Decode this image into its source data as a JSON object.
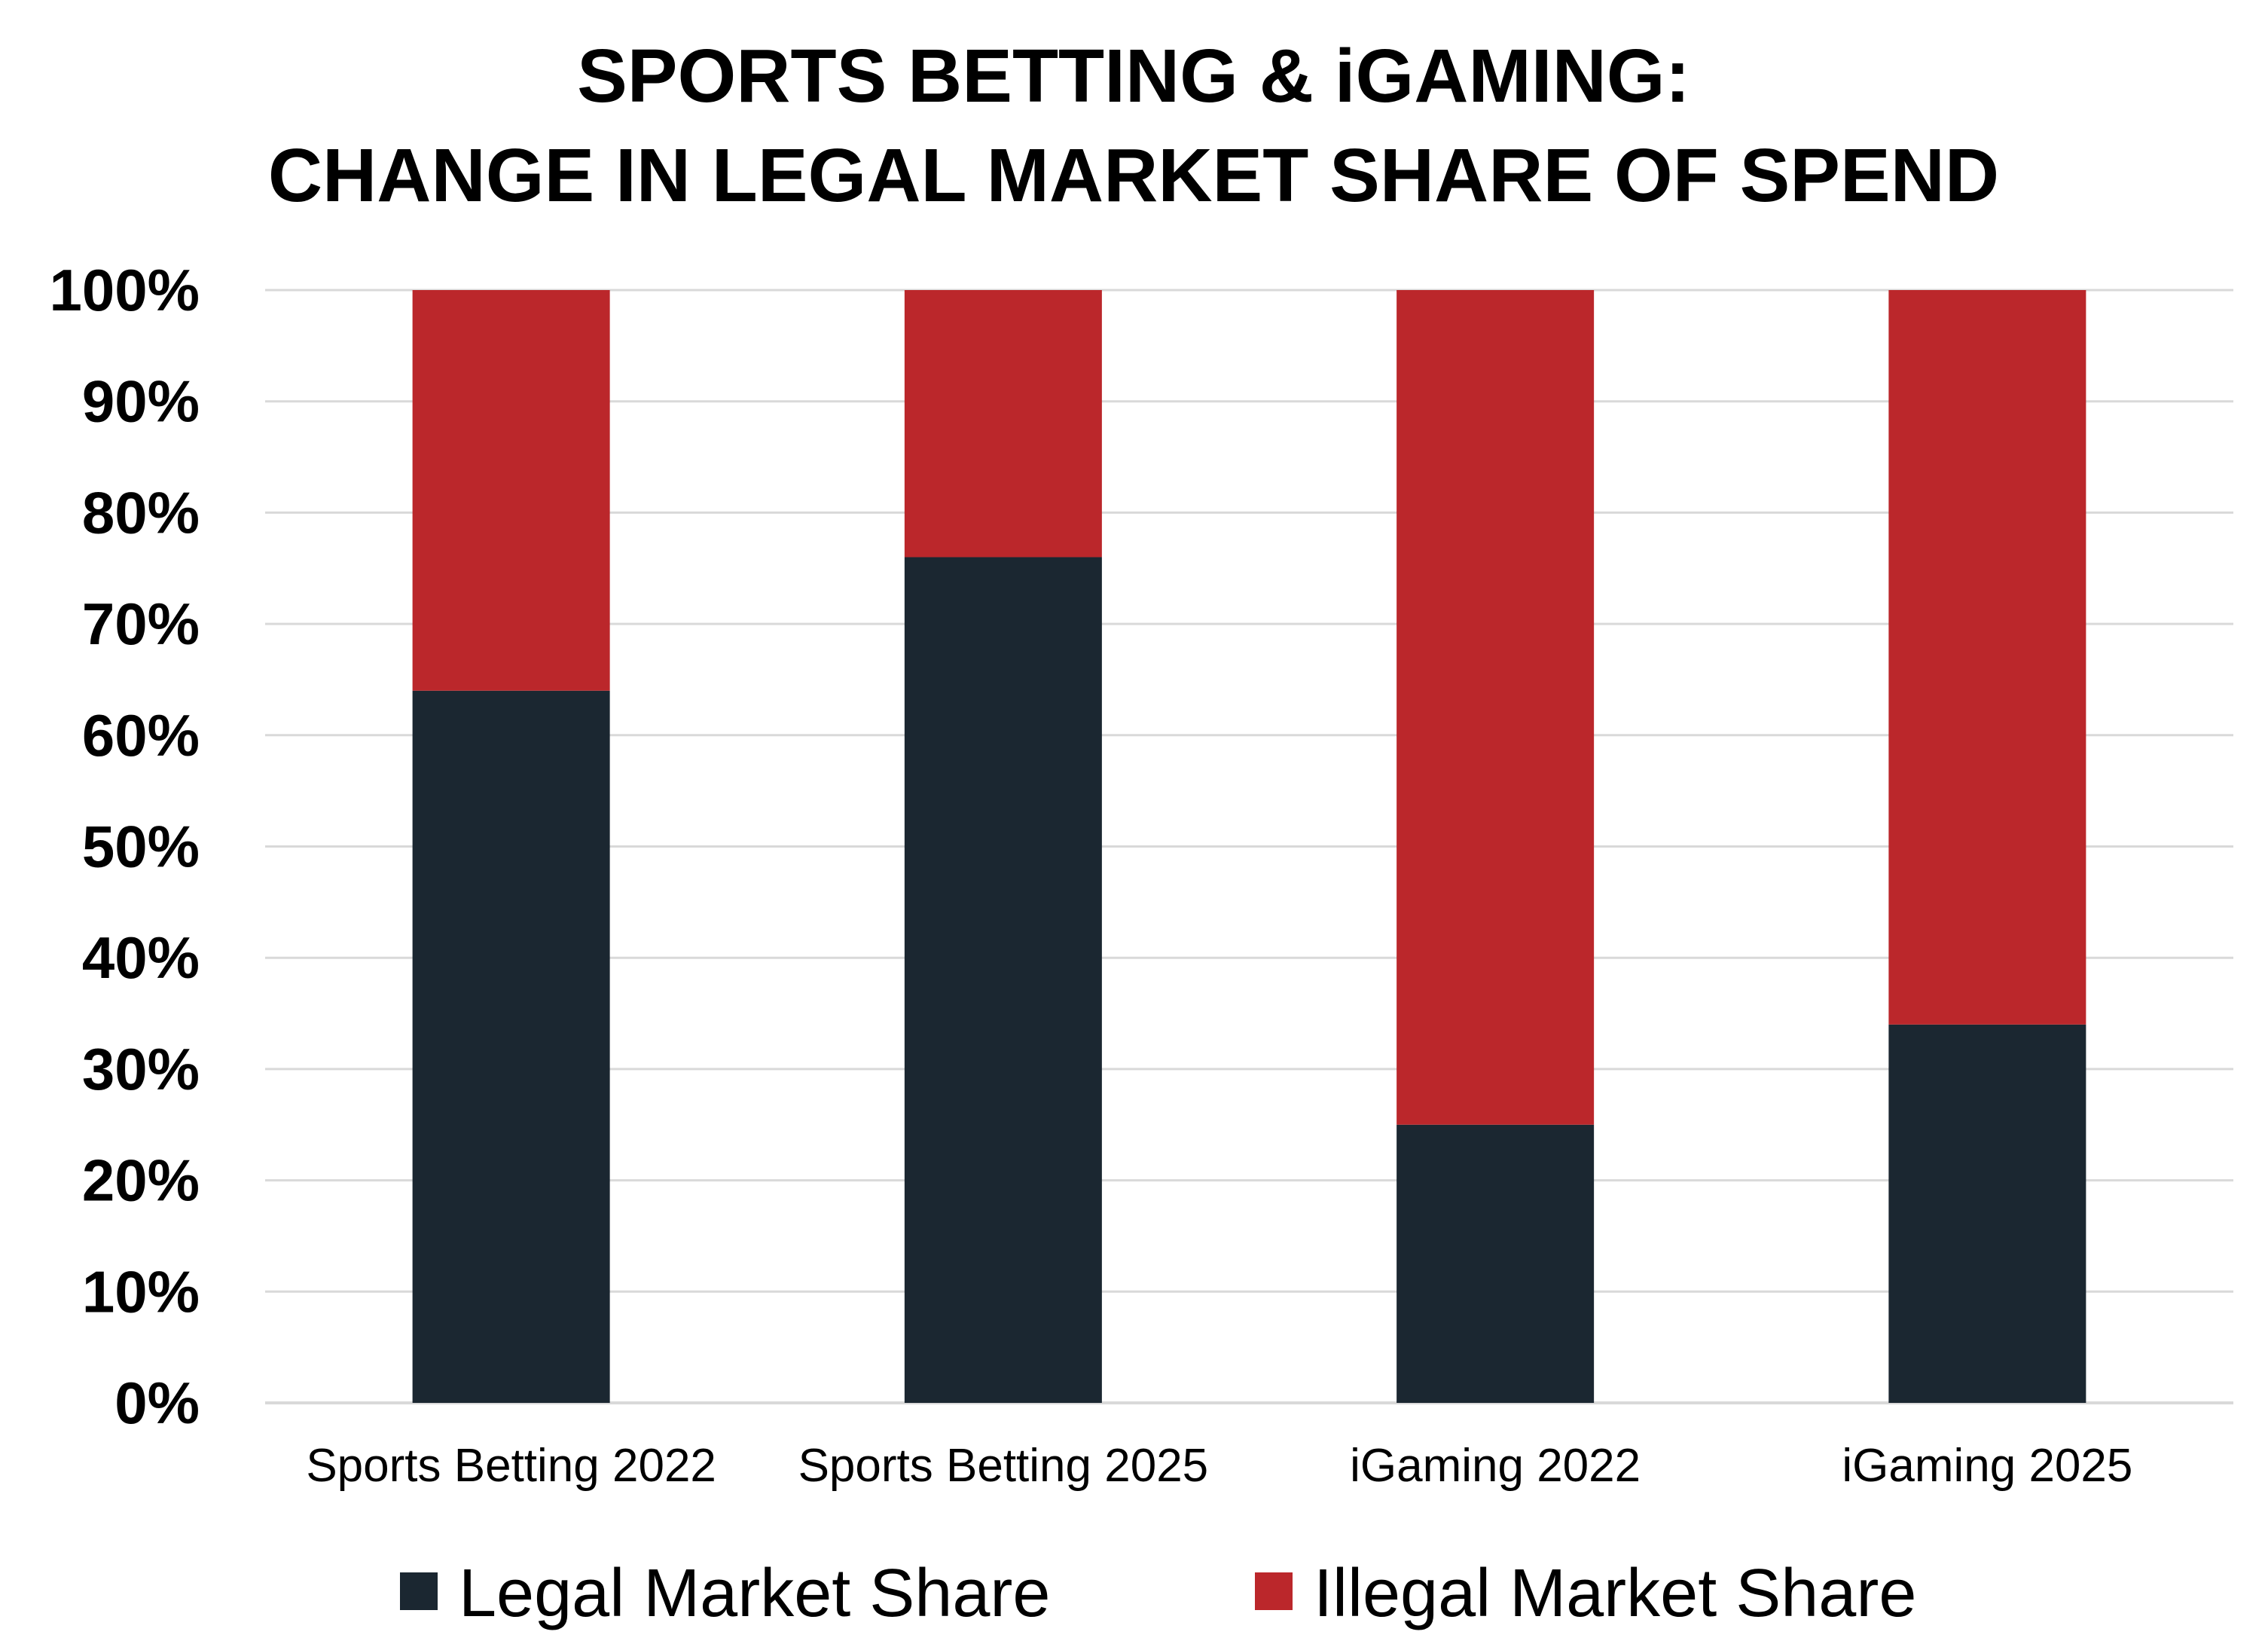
{
  "chart_data": {
    "type": "bar",
    "stacked": true,
    "title": [
      "SPORTS BETTING & iGAMING:",
      "CHANGE IN LEGAL MARKET SHARE OF SPEND"
    ],
    "categories": [
      "Sports Betting 2022",
      "Sports Betting 2025",
      "iGaming 2022",
      "iGaming 2025"
    ],
    "series": [
      {
        "name": "Legal Market Share",
        "color": "#1b2731",
        "values": [
          64,
          76,
          25,
          34
        ]
      },
      {
        "name": "Illegal Market Share",
        "color": "#bb272b",
        "values": [
          36,
          24,
          75,
          66
        ]
      }
    ],
    "ylim": [
      0,
      100
    ],
    "yticks": [
      "0%",
      "10%",
      "20%",
      "30%",
      "40%",
      "50%",
      "60%",
      "70%",
      "80%",
      "90%",
      "100%"
    ],
    "grid": true,
    "legend_position": "bottom"
  }
}
